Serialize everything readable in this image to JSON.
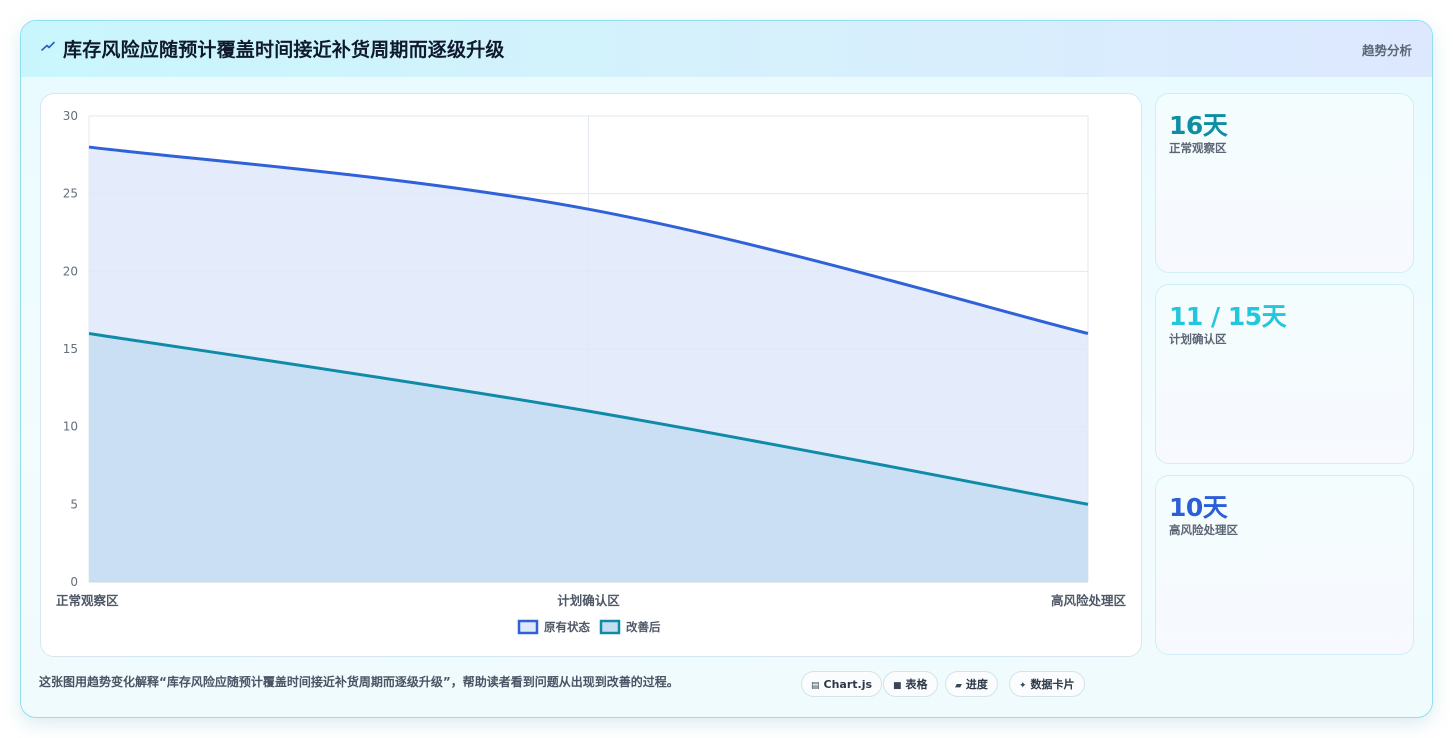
{
  "header": {
    "title": "库存风险应随预计覆盖时间接近补货周期而逐级升级",
    "tag": "趋势分析"
  },
  "stats": [
    {
      "value": "16天",
      "label": "正常观察区",
      "color": "#0e8ea3"
    },
    {
      "value": "11 / 15天",
      "label": "计划确认区",
      "color": "#22c6dd"
    },
    {
      "value": "10天",
      "label": "高风险处理区",
      "color": "#2c5fd6"
    }
  ],
  "footer": {
    "description": "这张图用趋势变化解释“库存风险应随预计覆盖时间接近补货周期而逐级升级”，帮助读者看到问题从出现到改善的过程。",
    "chips": [
      {
        "icon": "chart-icon",
        "glyph": "▤",
        "label": "Chart.js"
      },
      {
        "icon": "table-icon",
        "glyph": "■",
        "label": "表格"
      },
      {
        "icon": "progress-icon",
        "glyph": "▰",
        "label": "进度"
      },
      {
        "icon": "sparkle-icon",
        "glyph": "✦",
        "label": "数据卡片"
      }
    ]
  },
  "chart_data": {
    "type": "area",
    "categories": [
      "正常观察区",
      "计划确认区",
      "高风险处理区"
    ],
    "ylim": [
      0,
      30
    ],
    "yticks": [
      0,
      5,
      10,
      15,
      20,
      25,
      30
    ],
    "grid": true,
    "legend_position": "bottom",
    "series": [
      {
        "name": "原有状态",
        "values": [
          28,
          24,
          16
        ],
        "color": "#2f62d8",
        "fill": "#dfe8fa"
      },
      {
        "name": "改善后",
        "values": [
          16,
          11,
          5
        ],
        "color": "#0f8ba8",
        "fill": "#c5ddf1"
      }
    ]
  }
}
